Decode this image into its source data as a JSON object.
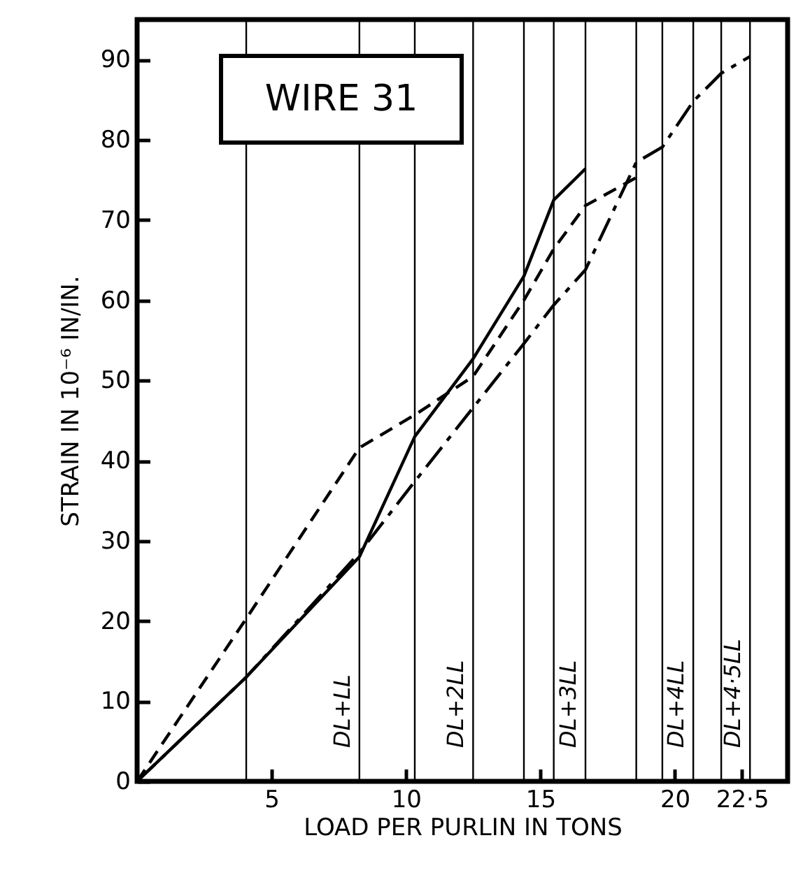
{
  "chart_data": {
    "type": "line",
    "title": "WIRE 31",
    "xlabel": "LOAD PER PURLIN IN TONS",
    "ylabel": "STRAIN IN 10⁻⁶ IN/IN.",
    "xlim": [
      0,
      24.2
    ],
    "ylim": [
      0,
      95
    ],
    "xticks": [
      5,
      10,
      15,
      20,
      {
        "value": 22.5,
        "label": "22·5"
      }
    ],
    "yticks": [
      0,
      10,
      20,
      30,
      40,
      50,
      60,
      70,
      80,
      90
    ],
    "series": [
      {
        "color": "#000000",
        "line_style": "solid",
        "x": [
          0,
          4.06,
          8.27,
          10.33,
          12.5,
          14.39,
          15.5,
          16.68
        ],
        "values": [
          0,
          13,
          28,
          43,
          52.7,
          63,
          72.5,
          76.4
        ]
      },
      {
        "color": "#000000",
        "line_style": "dashed",
        "x": [
          0,
          4.06,
          8.27,
          10.33,
          12.5,
          14.39,
          15.5,
          16.68,
          18.57,
          19.54,
          20.69,
          21.73,
          22.8
        ],
        "values": [
          0,
          13,
          28.5,
          37.4,
          46.6,
          54.6,
          59.4,
          63.8,
          77.2,
          79.1,
          84.8,
          88.3,
          90.4
        ]
      },
      {
        "color": "#000000",
        "line_style": "dashed",
        "x": [
          0,
          4.06,
          8.27,
          10.33,
          12.5,
          14.39,
          15.5,
          16.68,
          18.57
        ],
        "values": [
          0,
          20.3,
          41.6,
          45.7,
          50.5,
          60,
          66.4,
          71.8,
          75.3
        ]
      }
    ],
    "ref_lines": [
      {
        "axis": "x",
        "value": 4.06,
        "color": "#000000"
      },
      {
        "axis": "x",
        "value": 8.27,
        "label": "DL+LL",
        "color": "#000000"
      },
      {
        "axis": "x",
        "value": 10.33,
        "color": "#000000"
      },
      {
        "axis": "x",
        "value": 12.5,
        "label": "DL+2LL",
        "color": "#000000"
      },
      {
        "axis": "x",
        "value": 14.39,
        "color": "#000000"
      },
      {
        "axis": "x",
        "value": 15.5,
        "color": "#000000"
      },
      {
        "axis": "x",
        "value": 16.68,
        "label": "DL+3LL",
        "color": "#000000"
      },
      {
        "axis": "x",
        "value": 18.57,
        "color": "#000000"
      },
      {
        "axis": "x",
        "value": 19.54,
        "color": "#000000"
      },
      {
        "axis": "x",
        "value": 20.69,
        "label": "DL+4LL",
        "color": "#000000"
      },
      {
        "axis": "x",
        "value": 21.73,
        "color": "#000000"
      },
      {
        "axis": "x",
        "value": 22.8,
        "label": "DL+4·5LL",
        "color": "#000000"
      }
    ],
    "grid": false
  }
}
